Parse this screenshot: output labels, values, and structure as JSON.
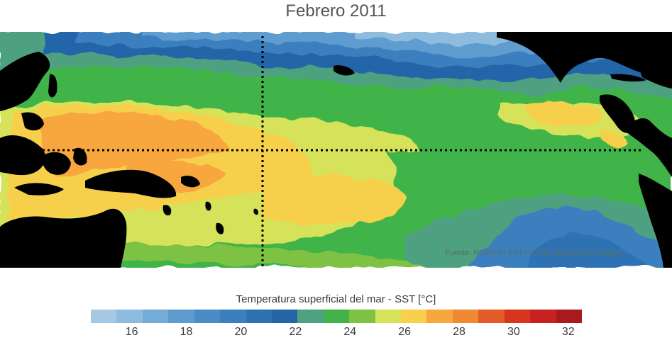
{
  "title": "Febrero 2011",
  "source": "Fuente: NOAA OI SST V2 High Resolution Dataset",
  "colorbar": {
    "label": "Temperatura superficial del mar - SST  [°C]",
    "min": 15,
    "max": 33,
    "colors": [
      "#a6c9e3",
      "#8ebcdf",
      "#74acd7",
      "#5e9ccf",
      "#4a8dc6",
      "#3a7fbe",
      "#2d72b3",
      "#2465a8",
      "#4ea181",
      "#41b34a",
      "#7dc243",
      "#d6e35a",
      "#f7d04c",
      "#f7a73d",
      "#ef8a33",
      "#e55b28",
      "#d8351f",
      "#c9211f",
      "#a81a1d"
    ],
    "tick_values": [
      16,
      18,
      20,
      22,
      24,
      26,
      28,
      30,
      32
    ],
    "tick_labels": [
      "16",
      "18",
      "20",
      "22",
      "24",
      "26",
      "28",
      "30",
      "32"
    ]
  },
  "map": {
    "region": "Tropical Pacific Ocean",
    "land_color": "#000000",
    "reference_lines": [
      {
        "type": "equator",
        "style": "dotted"
      },
      {
        "type": "dateline",
        "style": "dotted"
      }
    ]
  }
}
